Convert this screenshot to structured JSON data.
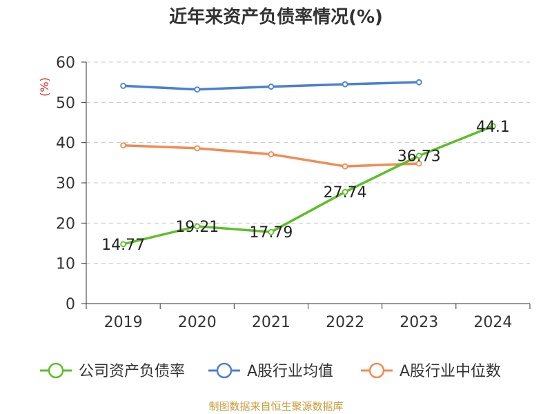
{
  "title": "近年来资产负债率情况(%)",
  "source": "制图数据来自恒生聚源数据库",
  "chart_data": {
    "type": "line",
    "categories": [
      "2019",
      "2020",
      "2021",
      "2022",
      "2023",
      "2024"
    ],
    "ylabel": "(%)",
    "ylim": [
      0,
      60
    ],
    "yticks": [
      0,
      10,
      20,
      30,
      40,
      50,
      60
    ],
    "grid": true,
    "legend_position": "bottom",
    "series": [
      {
        "name": "公司资产负债率",
        "color": "#5cbf28",
        "values": [
          14.77,
          19.21,
          17.79,
          27.74,
          36.73,
          44.1
        ],
        "labels": [
          "14.77",
          "19.21",
          "17.79",
          "27.74",
          "36.73",
          "44.1"
        ]
      },
      {
        "name": "A股行业均值",
        "color": "#4a7fd4",
        "values": [
          54.1,
          53.2,
          53.9,
          54.5,
          55.0,
          null
        ]
      },
      {
        "name": "A股行业中位数",
        "color": "#f28b54",
        "values": [
          39.3,
          38.6,
          37.1,
          34.1,
          34.8,
          null
        ]
      }
    ]
  }
}
